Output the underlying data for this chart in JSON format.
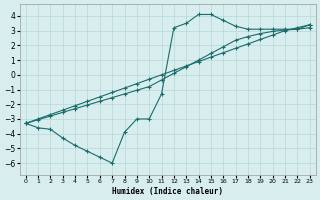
{
  "line1_x": [
    0,
    1,
    2,
    3,
    4,
    5,
    6,
    7,
    8,
    9,
    10,
    11,
    12,
    13,
    14,
    15,
    16,
    17,
    18,
    19,
    20,
    21,
    22,
    23
  ],
  "line1_y": [
    -3.3,
    -3.6,
    -3.7,
    -4.3,
    -4.8,
    -5.2,
    -5.6,
    -6.0,
    -3.9,
    -3.0,
    -3.0,
    -1.3,
    3.2,
    3.5,
    4.1,
    4.1,
    3.7,
    3.3,
    3.1,
    3.1,
    3.1,
    3.1,
    3.1,
    3.4
  ],
  "line2_x": [
    0,
    1,
    2,
    3,
    4,
    5,
    6,
    7,
    8,
    9,
    10,
    11,
    12,
    13,
    14,
    15,
    16,
    17,
    18,
    19,
    20,
    21,
    22,
    23
  ],
  "line2_y": [
    -3.3,
    -3.0,
    -2.7,
    -2.4,
    -2.1,
    -1.8,
    -1.5,
    -1.2,
    -0.9,
    -0.6,
    -0.3,
    0.0,
    0.3,
    0.6,
    0.9,
    1.2,
    1.5,
    1.8,
    2.1,
    2.4,
    2.7,
    3.0,
    3.2,
    3.4
  ],
  "line3_x": [
    0,
    1,
    2,
    3,
    4,
    5,
    6,
    7,
    8,
    9,
    10,
    11,
    12,
    13,
    14,
    15,
    16,
    17,
    18,
    19,
    20,
    21,
    22,
    23
  ],
  "line3_y": [
    -3.3,
    -3.05,
    -2.8,
    -2.55,
    -2.3,
    -2.05,
    -1.8,
    -1.55,
    -1.3,
    -1.05,
    -0.8,
    -0.35,
    0.1,
    0.55,
    1.0,
    1.45,
    1.9,
    2.35,
    2.6,
    2.8,
    2.95,
    3.05,
    3.1,
    3.2
  ],
  "line_color": "#1a6b6b",
  "bg_color": "#d8eeee",
  "grid_color": "#b8d8d8",
  "xlabel": "Humidex (Indice chaleur)",
  "xlim": [
    -0.5,
    23.5
  ],
  "ylim": [
    -6.8,
    4.8
  ],
  "yticks": [
    4,
    3,
    2,
    1,
    0,
    -1,
    -2,
    -3,
    -4,
    -5,
    -6
  ],
  "xticks": [
    0,
    1,
    2,
    3,
    4,
    5,
    6,
    7,
    8,
    9,
    10,
    11,
    12,
    13,
    14,
    15,
    16,
    17,
    18,
    19,
    20,
    21,
    22,
    23
  ]
}
